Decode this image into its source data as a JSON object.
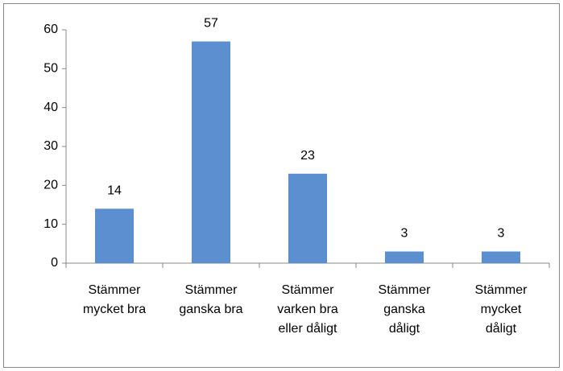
{
  "chart_data": {
    "type": "bar",
    "categories": [
      "Stämmer mycket bra",
      "Stämmer ganska bra",
      "Stämmer varken bra eller dåligt",
      "Stämmer ganska dåligt",
      "Stämmer mycket dåligt"
    ],
    "values": [
      14,
      57,
      23,
      3,
      3
    ],
    "color": "#5b8fd0",
    "ylim": [
      0,
      60
    ],
    "yticks": [
      0,
      10,
      20,
      30,
      40,
      50,
      60
    ],
    "grid": false
  }
}
